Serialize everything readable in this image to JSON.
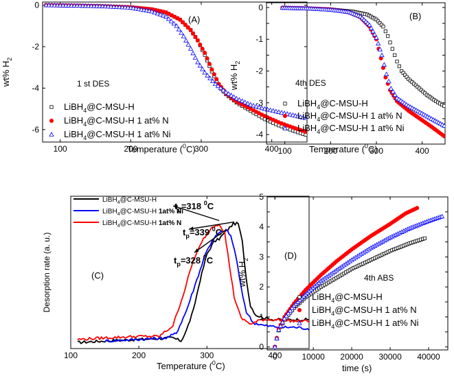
{
  "figure": {
    "description_panels": [
      "A",
      "B",
      "C",
      "D"
    ]
  },
  "chart_data": [
    {
      "type": "scatter",
      "panel_label": "(A)",
      "condition": "1 st DES",
      "xlabel": "Temperature (",
      "xlabel_sup": "0",
      "xlabel_end": "C)",
      "ylabel": "wt% H",
      "ylabel_sub": "2",
      "xlim": [
        75,
        450
      ],
      "ylim": [
        -6.6,
        0.15
      ],
      "xticks": [
        100,
        200,
        300,
        400
      ],
      "yticks": [
        0,
        -2,
        -4,
        -6
      ],
      "series": [
        {
          "name": "LiBH4@C-MSU-H",
          "marker": "square-open",
          "color": "#000000",
          "points": [
            [
              80,
              0
            ],
            [
              120,
              -0.02
            ],
            [
              160,
              -0.05
            ],
            [
              200,
              -0.1
            ],
            [
              230,
              -0.2
            ],
            [
              250,
              -0.35
            ],
            [
              270,
              -0.7
            ],
            [
              285,
              -1.2
            ],
            [
              295,
              -1.7
            ],
            [
              305,
              -2.4
            ],
            [
              315,
              -3.2
            ],
            [
              325,
              -3.9
            ],
            [
              335,
              -4.3
            ],
            [
              350,
              -4.7
            ],
            [
              370,
              -5.1
            ],
            [
              390,
              -5.5
            ],
            [
              410,
              -5.8
            ],
            [
              430,
              -6.05
            ],
            [
              448,
              -6.25
            ]
          ]
        },
        {
          "name": "LiBH4@C-MSU-H 1 at% N",
          "marker": "circle-filled",
          "color": "#ff0000",
          "points": [
            [
              80,
              0
            ],
            [
              120,
              -0.02
            ],
            [
              160,
              -0.05
            ],
            [
              200,
              -0.1
            ],
            [
              230,
              -0.2
            ],
            [
              250,
              -0.35
            ],
            [
              270,
              -0.7
            ],
            [
              285,
              -1.2
            ],
            [
              295,
              -1.7
            ],
            [
              305,
              -2.3
            ],
            [
              315,
              -3.1
            ],
            [
              325,
              -3.8
            ],
            [
              335,
              -4.25
            ],
            [
              350,
              -4.65
            ],
            [
              370,
              -5.0
            ],
            [
              390,
              -5.35
            ],
            [
              410,
              -5.65
            ],
            [
              430,
              -5.9
            ],
            [
              448,
              -6.1
            ]
          ]
        },
        {
          "name": "LiBH4@C-MSU-H 1 at% Ni",
          "marker": "triangle-open",
          "color": "#0000ff",
          "points": [
            [
              80,
              0
            ],
            [
              120,
              -0.02
            ],
            [
              160,
              -0.05
            ],
            [
              200,
              -0.12
            ],
            [
              230,
              -0.3
            ],
            [
              250,
              -0.55
            ],
            [
              265,
              -1.0
            ],
            [
              275,
              -1.5
            ],
            [
              285,
              -2.1
            ],
            [
              295,
              -2.75
            ],
            [
              305,
              -3.25
            ],
            [
              320,
              -3.8
            ],
            [
              335,
              -4.2
            ],
            [
              350,
              -4.5
            ],
            [
              370,
              -4.8
            ],
            [
              390,
              -5.0
            ],
            [
              410,
              -5.15
            ],
            [
              430,
              -5.3
            ],
            [
              448,
              -5.45
            ]
          ]
        }
      ],
      "legend": [
        "LiBH",
        "@C-MSU-H",
        "@C-MSU-H 1 at% N",
        "@C-MSU-H 1 at% Ni"
      ]
    },
    {
      "type": "scatter",
      "panel_label": "(B)",
      "condition": "4th DES",
      "xlabel": "Temperature (",
      "xlabel_sup": "0",
      "xlabel_end": "C)",
      "ylabel": "wt% H",
      "ylabel_sub": "2",
      "xlim": [
        60,
        450
      ],
      "ylim": [
        -4.3,
        0.15
      ],
      "xticks": [
        100,
        200,
        300,
        400
      ],
      "yticks": [
        0,
        -0.5,
        -1,
        -1.5,
        -2,
        -2.5,
        -3,
        -3.5,
        -4
      ],
      "ytick_labels": [
        "0",
        "",
        "-1",
        "",
        "-2",
        "",
        "-3",
        "",
        "-4"
      ],
      "series": [
        {
          "name": "LiBH4@C-MSU-H",
          "marker": "square-open",
          "color": "#000000",
          "points": [
            [
              95,
              -0.01
            ],
            [
              150,
              -0.03
            ],
            [
              200,
              -0.06
            ],
            [
              250,
              -0.13
            ],
            [
              280,
              -0.22
            ],
            [
              300,
              -0.38
            ],
            [
              315,
              -0.6
            ],
            [
              325,
              -0.9
            ],
            [
              335,
              -1.3
            ],
            [
              345,
              -1.7
            ],
            [
              355,
              -2.0
            ],
            [
              370,
              -2.25
            ],
            [
              390,
              -2.5
            ],
            [
              410,
              -2.75
            ],
            [
              430,
              -2.95
            ],
            [
              448,
              -3.1
            ]
          ]
        },
        {
          "name": "LiBH4@C-MSU-H 1 at% N",
          "marker": "circle-filled",
          "color": "#ff0000",
          "points": [
            [
              95,
              -0.01
            ],
            [
              150,
              -0.03
            ],
            [
              200,
              -0.06
            ],
            [
              240,
              -0.15
            ],
            [
              265,
              -0.3
            ],
            [
              285,
              -0.6
            ],
            [
              300,
              -1.0
            ],
            [
              310,
              -1.6
            ],
            [
              320,
              -2.2
            ],
            [
              330,
              -2.6
            ],
            [
              345,
              -2.95
            ],
            [
              370,
              -3.25
            ],
            [
              395,
              -3.5
            ],
            [
              420,
              -3.75
            ],
            [
              448,
              -4.05
            ]
          ]
        },
        {
          "name": "LiBH4@C-MSU-H 1 at% Ni",
          "marker": "triangle-open",
          "color": "#0000ff",
          "points": [
            [
              95,
              -0.01
            ],
            [
              150,
              -0.03
            ],
            [
              200,
              -0.07
            ],
            [
              240,
              -0.14
            ],
            [
              265,
              -0.28
            ],
            [
              285,
              -0.55
            ],
            [
              300,
              -0.95
            ],
            [
              312,
              -1.5
            ],
            [
              322,
              -2.1
            ],
            [
              332,
              -2.55
            ],
            [
              345,
              -2.85
            ],
            [
              370,
              -3.1
            ],
            [
              395,
              -3.3
            ],
            [
              420,
              -3.5
            ],
            [
              448,
              -3.72
            ]
          ]
        }
      ],
      "legend": [
        "LiBH",
        "@C-MSU-H",
        "@C-MSU-H 1 at% N",
        "@C-MSU-H 1 at% Ni"
      ]
    },
    {
      "type": "line",
      "panel_label": "(C)",
      "xlabel": "Temperature (",
      "xlabel_sup": "0",
      "xlabel_end": "C)",
      "ylabel": "Desorption rate (a. u.)",
      "xlim": [
        100,
        450
      ],
      "ylim": [
        0,
        1
      ],
      "xticks": [
        100,
        200,
        300,
        400
      ],
      "series": [
        {
          "name": "LiBH4@C-MSU-H",
          "color": "#000000",
          "points": [
            [
              110,
              0.04
            ],
            [
              150,
              0.05
            ],
            [
              200,
              0.06
            ],
            [
              250,
              0.07
            ],
            [
              262,
              0.05
            ],
            [
              270,
              0.12
            ],
            [
              280,
              0.25
            ],
            [
              290,
              0.45
            ],
            [
              300,
              0.62
            ],
            [
              310,
              0.7
            ],
            [
              318,
              0.72
            ],
            [
              322,
              0.74
            ],
            [
              328,
              0.77
            ],
            [
              339,
              0.82
            ],
            [
              346,
              0.82
            ],
            [
              352,
              0.7
            ],
            [
              358,
              0.45
            ],
            [
              364,
              0.28
            ],
            [
              372,
              0.22
            ],
            [
              385,
              0.2
            ],
            [
              400,
              0.19
            ],
            [
              430,
              0.19
            ],
            [
              450,
              0.19
            ]
          ]
        },
        {
          "name": "LiBH4@C-MSU-H 1at% Ni",
          "color": "#0000ff",
          "points": [
            [
              150,
              0.05
            ],
            [
              200,
              0.06
            ],
            [
              240,
              0.07
            ],
            [
              255,
              0.1
            ],
            [
              270,
              0.25
            ],
            [
              285,
              0.45
            ],
            [
              300,
              0.65
            ],
            [
              315,
              0.75
            ],
            [
              328,
              0.78
            ],
            [
              335,
              0.74
            ],
            [
              343,
              0.6
            ],
            [
              350,
              0.4
            ],
            [
              358,
              0.24
            ],
            [
              368,
              0.17
            ],
            [
              385,
              0.15
            ],
            [
              410,
              0.14
            ],
            [
              430,
              0.14
            ],
            [
              450,
              0.13
            ]
          ]
        },
        {
          "name": "LiBH4@C-MSU-H 1at% N",
          "color": "#ff0000",
          "points": [
            [
              110,
              0.06
            ],
            [
              150,
              0.07
            ],
            [
              200,
              0.08
            ],
            [
              230,
              0.08
            ],
            [
              250,
              0.15
            ],
            [
              265,
              0.35
            ],
            [
              280,
              0.58
            ],
            [
              295,
              0.72
            ],
            [
              308,
              0.8
            ],
            [
              318,
              0.82
            ],
            [
              326,
              0.76
            ],
            [
              333,
              0.55
            ],
            [
              340,
              0.34
            ],
            [
              350,
              0.2
            ],
            [
              365,
              0.16
            ],
            [
              380,
              0.19
            ],
            [
              400,
              0.19
            ],
            [
              430,
              0.18
            ],
            [
              450,
              0.18
            ]
          ]
        }
      ],
      "legend": [
        "LiBH",
        "@C-MSU-H",
        "@C-MSU-H ",
        "1at% Ni",
        "1at% N"
      ],
      "annotations": [
        {
          "text": "t",
          "sub": "p",
          "value": "=318 ",
          "sup": "0",
          "unit": "C"
        },
        {
          "text": "t",
          "sub": "p",
          "value": "=339 ",
          "sup": "0",
          "unit": "C"
        },
        {
          "text": "t",
          "sub": "p",
          "value": "=328 ",
          "sup": "0",
          "unit": "C"
        }
      ]
    },
    {
      "type": "scatter",
      "panel_label": "(D)",
      "condition": "4th ABS",
      "xlabel": "time (s)",
      "ylabel": "wt% H",
      "ylabel_sub": "2",
      "xlim": [
        -2000,
        45000
      ],
      "ylim": [
        -0.1,
        5
      ],
      "xticks": [
        0,
        10000,
        20000,
        30000,
        40000
      ],
      "yticks": [
        0,
        0.5,
        1,
        1.5,
        2,
        2.5,
        3,
        3.5,
        4,
        4.5,
        5
      ],
      "ytick_labels": [
        "0",
        "",
        "1",
        "",
        "2",
        "",
        "3",
        "",
        "4",
        "",
        "5"
      ],
      "series": [
        {
          "name": "LiBH4@C-MSU-H",
          "marker": "square-open",
          "color": "#000000",
          "points": [
            [
              0,
              0
            ],
            [
              1000,
              0.55
            ],
            [
              2500,
              0.9
            ],
            [
              5000,
              1.3
            ],
            [
              8000,
              1.65
            ],
            [
              12000,
              2.0
            ],
            [
              16000,
              2.3
            ],
            [
              20000,
              2.6
            ],
            [
              25000,
              2.9
            ],
            [
              30000,
              3.2
            ],
            [
              35000,
              3.45
            ],
            [
              39000,
              3.62
            ]
          ]
        },
        {
          "name": "LiBH4@C-MSU-H 1 at% N",
          "marker": "circle-filled",
          "color": "#ff0000",
          "points": [
            [
              0,
              0
            ],
            [
              1000,
              0.6
            ],
            [
              2500,
              1.0
            ],
            [
              5000,
              1.45
            ],
            [
              8000,
              1.9
            ],
            [
              12000,
              2.4
            ],
            [
              16000,
              2.85
            ],
            [
              20000,
              3.25
            ],
            [
              25000,
              3.7
            ],
            [
              30000,
              4.1
            ],
            [
              34000,
              4.45
            ],
            [
              37000,
              4.63
            ]
          ]
        },
        {
          "name": "LiBH4@C-MSU-H 1 at% Ni",
          "marker": "triangle-open",
          "color": "#0000ff",
          "points": [
            [
              0,
              0
            ],
            [
              1000,
              0.57
            ],
            [
              2500,
              0.95
            ],
            [
              5000,
              1.38
            ],
            [
              8000,
              1.75
            ],
            [
              12000,
              2.2
            ],
            [
              16000,
              2.55
            ],
            [
              20000,
              2.9
            ],
            [
              25000,
              3.3
            ],
            [
              30000,
              3.65
            ],
            [
              35000,
              3.95
            ],
            [
              40000,
              4.2
            ],
            [
              43500,
              4.35
            ]
          ]
        }
      ],
      "legend": [
        "LiBH",
        "@C-MSU-H",
        "@C-MSU-H 1 at% N",
        "@C-MSU-H 1 at% Ni"
      ],
      "legend_sub": "4"
    }
  ]
}
